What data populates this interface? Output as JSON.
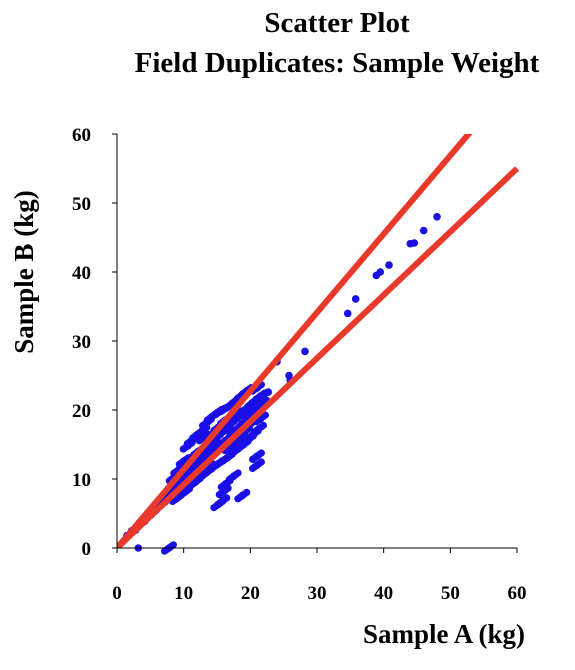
{
  "chart_data": {
    "type": "scatter",
    "title": [
      "Scatter Plot",
      "Field Duplicates: Sample Weight"
    ],
    "xlabel": "Sample A (kg)",
    "ylabel": "Sample B (kg)",
    "xlim": [
      0,
      60
    ],
    "ylim": [
      0,
      60
    ],
    "xticks": [
      0,
      10,
      20,
      30,
      40,
      50,
      60
    ],
    "yticks": [
      0,
      10,
      20,
      30,
      40,
      50,
      60
    ],
    "grid": false,
    "legend": "none",
    "colors": {
      "points": "#1a0fe6",
      "lines": "#e8392b",
      "axes": "#000000"
    },
    "reference_lines": [
      {
        "x": [
          0,
          54.5
        ],
        "y": [
          0,
          62
        ]
      },
      {
        "x": [
          0,
          60
        ],
        "y": [
          0,
          55
        ]
      }
    ],
    "series": [
      {
        "values": [
          [
            1.5,
            1.8
          ],
          [
            2.2,
            2.5
          ],
          [
            2.8,
            2.6
          ],
          [
            3.3,
            3.6
          ],
          [
            3.8,
            4.1
          ],
          [
            4.2,
            3.9
          ],
          [
            4.6,
            5.0
          ],
          [
            5.1,
            4.8
          ],
          [
            5.5,
            5.9
          ],
          [
            5.9,
            5.5
          ],
          [
            6.3,
            6.7
          ],
          [
            6.6,
            6.2
          ],
          [
            7.0,
            7.4
          ],
          [
            7.3,
            6.9
          ],
          [
            7.7,
            8.1
          ],
          [
            8.0,
            7.6
          ],
          [
            8.4,
            8.9
          ],
          [
            8.7,
            8.3
          ],
          [
            9.0,
            9.6
          ],
          [
            9.3,
            8.9
          ],
          [
            9.6,
            10.2
          ],
          [
            9.9,
            9.5
          ],
          [
            10.2,
            10.9
          ],
          [
            10.5,
            10.0
          ],
          [
            10.7,
            11.5
          ],
          [
            11.0,
            10.6
          ],
          [
            11.2,
            12.1
          ],
          [
            11.5,
            11.1
          ],
          [
            11.8,
            12.6
          ],
          [
            12.0,
            11.4
          ],
          [
            12.3,
            13.2
          ],
          [
            12.5,
            12.0
          ],
          [
            12.8,
            13.8
          ],
          [
            13.0,
            12.4
          ],
          [
            13.3,
            14.3
          ],
          [
            13.5,
            12.9
          ],
          [
            13.8,
            14.8
          ],
          [
            14.0,
            13.3
          ],
          [
            14.3,
            15.3
          ],
          [
            14.5,
            13.8
          ],
          [
            14.8,
            15.9
          ],
          [
            15.0,
            14.2
          ],
          [
            15.3,
            16.4
          ],
          [
            15.5,
            14.7
          ],
          [
            15.8,
            16.8
          ],
          [
            16.0,
            15.2
          ],
          [
            16.3,
            17.3
          ],
          [
            16.5,
            15.7
          ],
          [
            16.8,
            17.8
          ],
          [
            17.0,
            16.1
          ],
          [
            17.3,
            18.2
          ],
          [
            17.5,
            16.6
          ],
          [
            17.8,
            18.7
          ],
          [
            18.0,
            17.1
          ],
          [
            18.3,
            19.1
          ],
          [
            18.5,
            17.6
          ],
          [
            18.8,
            19.6
          ],
          [
            19.0,
            18.1
          ],
          [
            19.3,
            20.0
          ],
          [
            19.5,
            18.6
          ],
          [
            19.8,
            20.5
          ],
          [
            20.0,
            19.1
          ],
          [
            20.3,
            21.0
          ],
          [
            20.6,
            19.7
          ],
          [
            20.9,
            21.5
          ],
          [
            21.2,
            20.3
          ],
          [
            21.5,
            22.0
          ],
          [
            21.8,
            20.9
          ],
          [
            22.1,
            22.3
          ],
          [
            22.4,
            21.4
          ],
          [
            22.7,
            22.6
          ],
          [
            8.5,
            10.2
          ],
          [
            9.2,
            11.3
          ],
          [
            10.0,
            12.6
          ],
          [
            10.6,
            14.8
          ],
          [
            11.2,
            15.6
          ],
          [
            12.0,
            16.4
          ],
          [
            12.8,
            17.0
          ],
          [
            13.5,
            18.2
          ],
          [
            14.2,
            19.0
          ],
          [
            15.0,
            19.6
          ],
          [
            15.5,
            19.8
          ],
          [
            16.4,
            20.3
          ],
          [
            17.2,
            20.8
          ],
          [
            18.0,
            21.5
          ],
          [
            18.8,
            22.2
          ],
          [
            19.5,
            22.8
          ],
          [
            20.2,
            23.0
          ],
          [
            21.0,
            23.2
          ],
          [
            9.0,
            7.2
          ],
          [
            10.2,
            8.1
          ],
          [
            11.0,
            9.0
          ],
          [
            11.8,
            9.6
          ],
          [
            12.6,
            10.3
          ],
          [
            13.4,
            10.9
          ],
          [
            14.2,
            11.5
          ],
          [
            15.0,
            12.1
          ],
          [
            15.8,
            12.6
          ],
          [
            16.6,
            13.1
          ],
          [
            17.4,
            13.8
          ],
          [
            18.2,
            14.4
          ],
          [
            19.0,
            15.0
          ],
          [
            19.8,
            15.8
          ],
          [
            20.5,
            16.5
          ],
          [
            21.3,
            17.3
          ],
          [
            13.0,
            16.0
          ],
          [
            14.0,
            14.5
          ],
          [
            15.2,
            17.5
          ],
          [
            16.2,
            18.5
          ],
          [
            17.6,
            17.0
          ],
          [
            18.4,
            15.8
          ],
          [
            19.2,
            16.9
          ],
          [
            12.2,
            14.0
          ],
          [
            13.6,
            11.8
          ],
          [
            16.8,
            14.6
          ],
          [
            17.8,
            19.4
          ],
          [
            20.6,
            20.4
          ],
          [
            14.8,
            16.9
          ],
          [
            15.6,
            15.1
          ],
          [
            11.5,
            13.4
          ],
          [
            10.8,
            12.0
          ],
          [
            19.8,
            17.8
          ],
          [
            21.6,
            18.8
          ],
          [
            16.0,
            8.2
          ],
          [
            16.3,
            9.3
          ],
          [
            17.5,
            10.4
          ],
          [
            21.0,
            12.0
          ],
          [
            21.0,
            13.3
          ],
          [
            18.8,
            7.6
          ],
          [
            15.2,
            6.3
          ],
          [
            15.8,
            6.8
          ],
          [
            3.2,
            0.0
          ],
          [
            7.8,
            0.0
          ],
          [
            24.0,
            27.0
          ],
          [
            25.8,
            25.0
          ],
          [
            26.0,
            24.3
          ],
          [
            28.2,
            28.5
          ],
          [
            34.6,
            34.0
          ],
          [
            35.8,
            36.1
          ],
          [
            38.9,
            39.5
          ],
          [
            39.5,
            40.0
          ],
          [
            40.8,
            41.0
          ],
          [
            44.0,
            44.1
          ],
          [
            44.6,
            44.2
          ],
          [
            46.0,
            46.0
          ],
          [
            48.0,
            48.0
          ]
        ]
      }
    ]
  }
}
